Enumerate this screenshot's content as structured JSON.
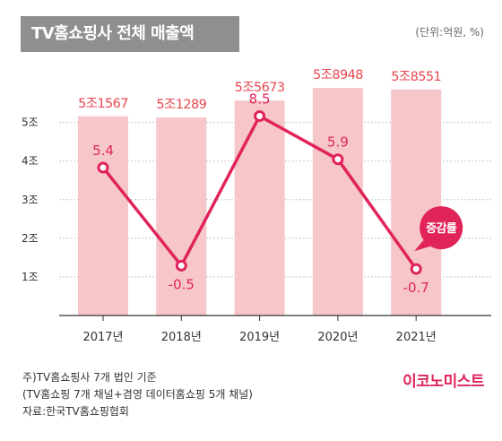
{
  "header": {
    "title": "TV홈쇼핑사 전체 매출액",
    "unit": "(단위:억원, %)"
  },
  "chart_data": {
    "type": "bar",
    "categories": [
      "2017년",
      "2018년",
      "2019년",
      "2020년",
      "2021년"
    ],
    "series": [
      {
        "type": "bar",
        "values": [
          51567,
          51289,
          55673,
          58948,
          58551
        ],
        "labels": [
          "5조1567",
          "5조1289",
          "5조5673",
          "5조8948",
          "5조8551"
        ],
        "color": "#f6c6c8"
      },
      {
        "name": "증감률",
        "type": "line",
        "values": [
          5.4,
          -0.5,
          8.5,
          5.9,
          -0.7
        ],
        "labels": [
          "5.4",
          "-0.5",
          "8.5",
          "5.9",
          "-0.7"
        ],
        "color": "#e0245a"
      }
    ],
    "yticks": [
      "1조",
      "2조",
      "3조",
      "4조",
      "5조"
    ],
    "ytick_values": [
      10000,
      20000,
      30000,
      40000,
      50000
    ],
    "ylim": [
      0,
      65000
    ],
    "line_ylim": [
      -3.5,
      11.6
    ],
    "grid": true,
    "bar_label_color": "#e8474f",
    "bubble_text": "증감률"
  },
  "notes": {
    "line1": "주)TV홈쇼핑사 7개 법인 기준",
    "line2": "(TV홈쇼핑 7개 채널+겸영 데이터홈쇼핑 5개 채널)",
    "source": "자료:한국TV홈쇼핑협회"
  },
  "brand": "이코노미스트"
}
